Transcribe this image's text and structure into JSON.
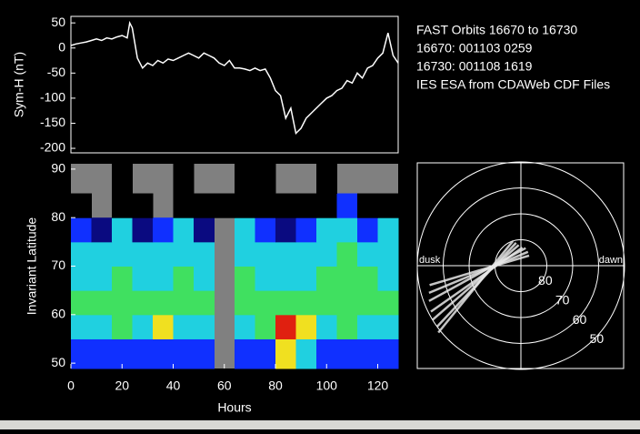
{
  "chart_data": [
    {
      "type": "line",
      "ylabel": "Sym-H (nT)",
      "color": "#ffffff",
      "x": [
        0,
        2,
        4,
        6,
        8,
        10,
        12,
        14,
        16,
        18,
        20,
        22,
        23,
        24,
        26,
        28,
        30,
        32,
        34,
        36,
        38,
        40,
        42,
        44,
        46,
        48,
        50,
        52,
        54,
        56,
        58,
        60,
        62,
        64,
        66,
        68,
        70,
        72,
        74,
        76,
        78,
        80,
        82,
        84,
        86,
        88,
        90,
        92,
        94,
        96,
        98,
        100,
        102,
        104,
        106,
        108,
        110,
        112,
        114,
        116,
        118,
        120,
        122,
        124,
        126,
        128
      ],
      "values": [
        5,
        8,
        10,
        12,
        15,
        18,
        15,
        20,
        18,
        22,
        25,
        20,
        50,
        40,
        -20,
        -40,
        -30,
        -35,
        -25,
        -30,
        -22,
        -25,
        -20,
        -15,
        -10,
        -15,
        -20,
        -10,
        -15,
        -20,
        -30,
        -35,
        -25,
        -40,
        -40,
        -42,
        -45,
        -40,
        -45,
        -42,
        -60,
        -85,
        -95,
        -140,
        -120,
        -170,
        -160,
        -140,
        -130,
        -120,
        -110,
        -100,
        -95,
        -85,
        -80,
        -65,
        -70,
        -50,
        -60,
        -40,
        -35,
        -20,
        -10,
        30,
        -15,
        -30
      ],
      "xlim": [
        0,
        128
      ],
      "ylim": [
        -209,
        63
      ],
      "yticks": [
        50,
        0,
        -50,
        -100,
        -150,
        -200
      ],
      "annotations": [
        "FAST Orbits 16670 to 16730",
        "16670: 001103 0259",
        "16730: 001108 1619",
        "IES ESA from CDAWeb CDF Files"
      ]
    },
    {
      "type": "heatmap",
      "xlabel": "Hours",
      "ylabel": "Invariant Latitude",
      "xlim": [
        0,
        128
      ],
      "xticks": [
        0,
        20,
        40,
        60,
        80,
        100,
        120
      ],
      "ylim": [
        48.9,
        91.1
      ],
      "yticks": [
        50,
        60,
        70,
        80,
        90
      ],
      "xbins": [
        0,
        8,
        16,
        24,
        32,
        40,
        48,
        56,
        64,
        72,
        80,
        88,
        96,
        104,
        112,
        120,
        128
      ],
      "ybins": [
        48.9,
        55,
        60,
        65,
        70,
        75,
        80,
        85,
        91.1
      ],
      "colors": [
        "#000000",
        "#0a0a80",
        "#1030ff",
        "#20d0e0",
        "#40e060",
        "#f0e020",
        "#e02010"
      ],
      "missing_color": "#808080",
      "z": [
        [
          2,
          2,
          2,
          2,
          2,
          2,
          2,
          null,
          2,
          2,
          5,
          3,
          2,
          2,
          2,
          2
        ],
        [
          3,
          3,
          4,
          3,
          5,
          3,
          3,
          null,
          3,
          4,
          6,
          5,
          3,
          4,
          3,
          3
        ],
        [
          4,
          4,
          4,
          4,
          4,
          4,
          4,
          null,
          4,
          4,
          4,
          4,
          4,
          4,
          4,
          4
        ],
        [
          3,
          3,
          4,
          3,
          3,
          4,
          3,
          null,
          4,
          3,
          3,
          3,
          4,
          4,
          4,
          3
        ],
        [
          3,
          3,
          3,
          3,
          3,
          3,
          3,
          null,
          3,
          3,
          3,
          3,
          3,
          4,
          3,
          3
        ],
        [
          2,
          1,
          3,
          1,
          2,
          3,
          1,
          null,
          3,
          2,
          1,
          2,
          3,
          3,
          2,
          3
        ],
        [
          0,
          null,
          0,
          0,
          null,
          0,
          0,
          0,
          0,
          0,
          0,
          0,
          0,
          2,
          0,
          0
        ],
        [
          null,
          null,
          0,
          null,
          null,
          0,
          null,
          null,
          0,
          0,
          null,
          null,
          0,
          null,
          null,
          null
        ]
      ]
    },
    {
      "type": "polar",
      "rlim": [
        90,
        50
      ],
      "rticks": [
        80,
        70,
        60,
        50
      ],
      "angle_labels": [
        "dusk",
        "dawn"
      ],
      "color": "#e8e8e8",
      "series": [
        {
          "x": [
            15.4,
            22.8
          ],
          "values": [
            49,
            80
          ]
        },
        {
          "x": [
            15.6,
            23.2
          ],
          "values": [
            50,
            81
          ]
        },
        {
          "x": [
            15.9,
            23.6
          ],
          "values": [
            50,
            82
          ]
        },
        {
          "x": [
            16.2,
            0.3
          ],
          "values": [
            51,
            83
          ]
        },
        {
          "x": [
            16.6,
            1.0
          ],
          "values": [
            52,
            83
          ]
        },
        {
          "x": [
            16.9,
            1.8
          ],
          "values": [
            53,
            84
          ]
        },
        {
          "x": [
            17.2,
            2.6
          ],
          "values": [
            54,
            85
          ]
        }
      ]
    }
  ]
}
